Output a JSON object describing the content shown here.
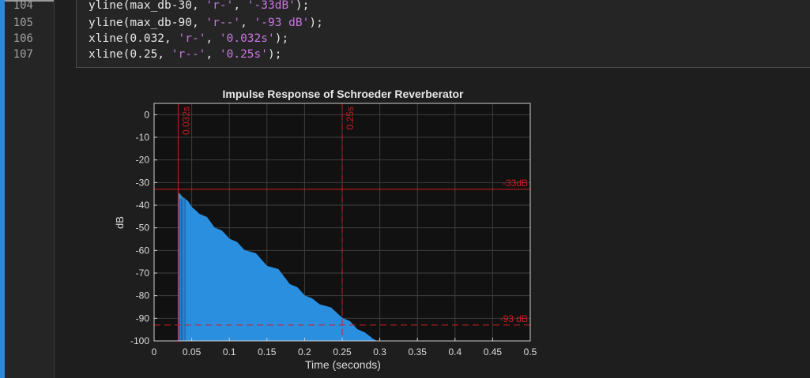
{
  "editor": {
    "lines": [
      {
        "number": "104",
        "pre": "yline(max_db-30, ",
        "s1": "'r-'",
        "mid": ", ",
        "s2": "'-33dB'",
        "post": ");"
      },
      {
        "number": "105",
        "pre": "yline(max_db-90, ",
        "s1": "'r--'",
        "mid": ", ",
        "s2": "'-93 dB'",
        "post": ");"
      },
      {
        "number": "106",
        "pre": "xline(0.032, ",
        "s1": "'r-'",
        "mid": ", ",
        "s2": "'0.032s'",
        "post": ");"
      },
      {
        "number": "107",
        "pre": "xline(0.25, ",
        "s1": "'r--'",
        "mid": ", ",
        "s2": "'0.25s'",
        "post": ");"
      }
    ],
    "string_color": "#c678dd",
    "accent_color": "#2e86de"
  },
  "chart_data": {
    "type": "area",
    "title": "Impulse Response of Schroeder Reverberator",
    "xlabel": "Time (seconds)",
    "ylabel": "dB",
    "xlim": [
      0,
      0.5
    ],
    "ylim": [
      -100,
      5
    ],
    "xticks": [
      0,
      0.05,
      0.1,
      0.15,
      0.2,
      0.25,
      0.3,
      0.35,
      0.4,
      0.45,
      0.5
    ],
    "xticklabels": [
      "0",
      "0.05",
      "0.1",
      "0.15",
      "0.2",
      "0.25",
      "0.3",
      "0.35",
      "0.4",
      "0.45",
      "0.5"
    ],
    "yticks": [
      0,
      -10,
      -20,
      -30,
      -40,
      -50,
      -60,
      -70,
      -80,
      -90,
      -100
    ],
    "yticklabels": [
      "0",
      "-10",
      "-20",
      "-30",
      "-40",
      "-50",
      "-60",
      "-70",
      "-80",
      "-90",
      "-100"
    ],
    "grid": true,
    "series": [
      {
        "color": "#2b8fe0",
        "x": [
          0.032,
          0.034,
          0.04,
          0.05,
          0.06,
          0.08,
          0.1,
          0.12,
          0.15,
          0.18,
          0.2,
          0.22,
          0.25,
          0.27,
          0.29,
          0.3,
          0.31
        ],
        "y": [
          -34,
          -35,
          -37,
          -41,
          -44,
          -50,
          -55,
          -60,
          -67,
          -75,
          -80,
          -84,
          -90,
          -95,
          -99,
          -100,
          -101
        ]
      }
    ],
    "reference_lines": [
      {
        "axis": "y",
        "value": -33,
        "style": "solid",
        "label": "-33dB",
        "color": "#cc1f1f"
      },
      {
        "axis": "y",
        "value": -93,
        "style": "dashed",
        "label": "-93 dB",
        "color": "#cc1f1f"
      },
      {
        "axis": "x",
        "value": 0.032,
        "style": "solid",
        "label": "0.032s",
        "color": "#cc1f1f"
      },
      {
        "axis": "x",
        "value": 0.25,
        "style": "dashed",
        "label": "0.25s",
        "color": "#cc1f1f"
      }
    ]
  }
}
